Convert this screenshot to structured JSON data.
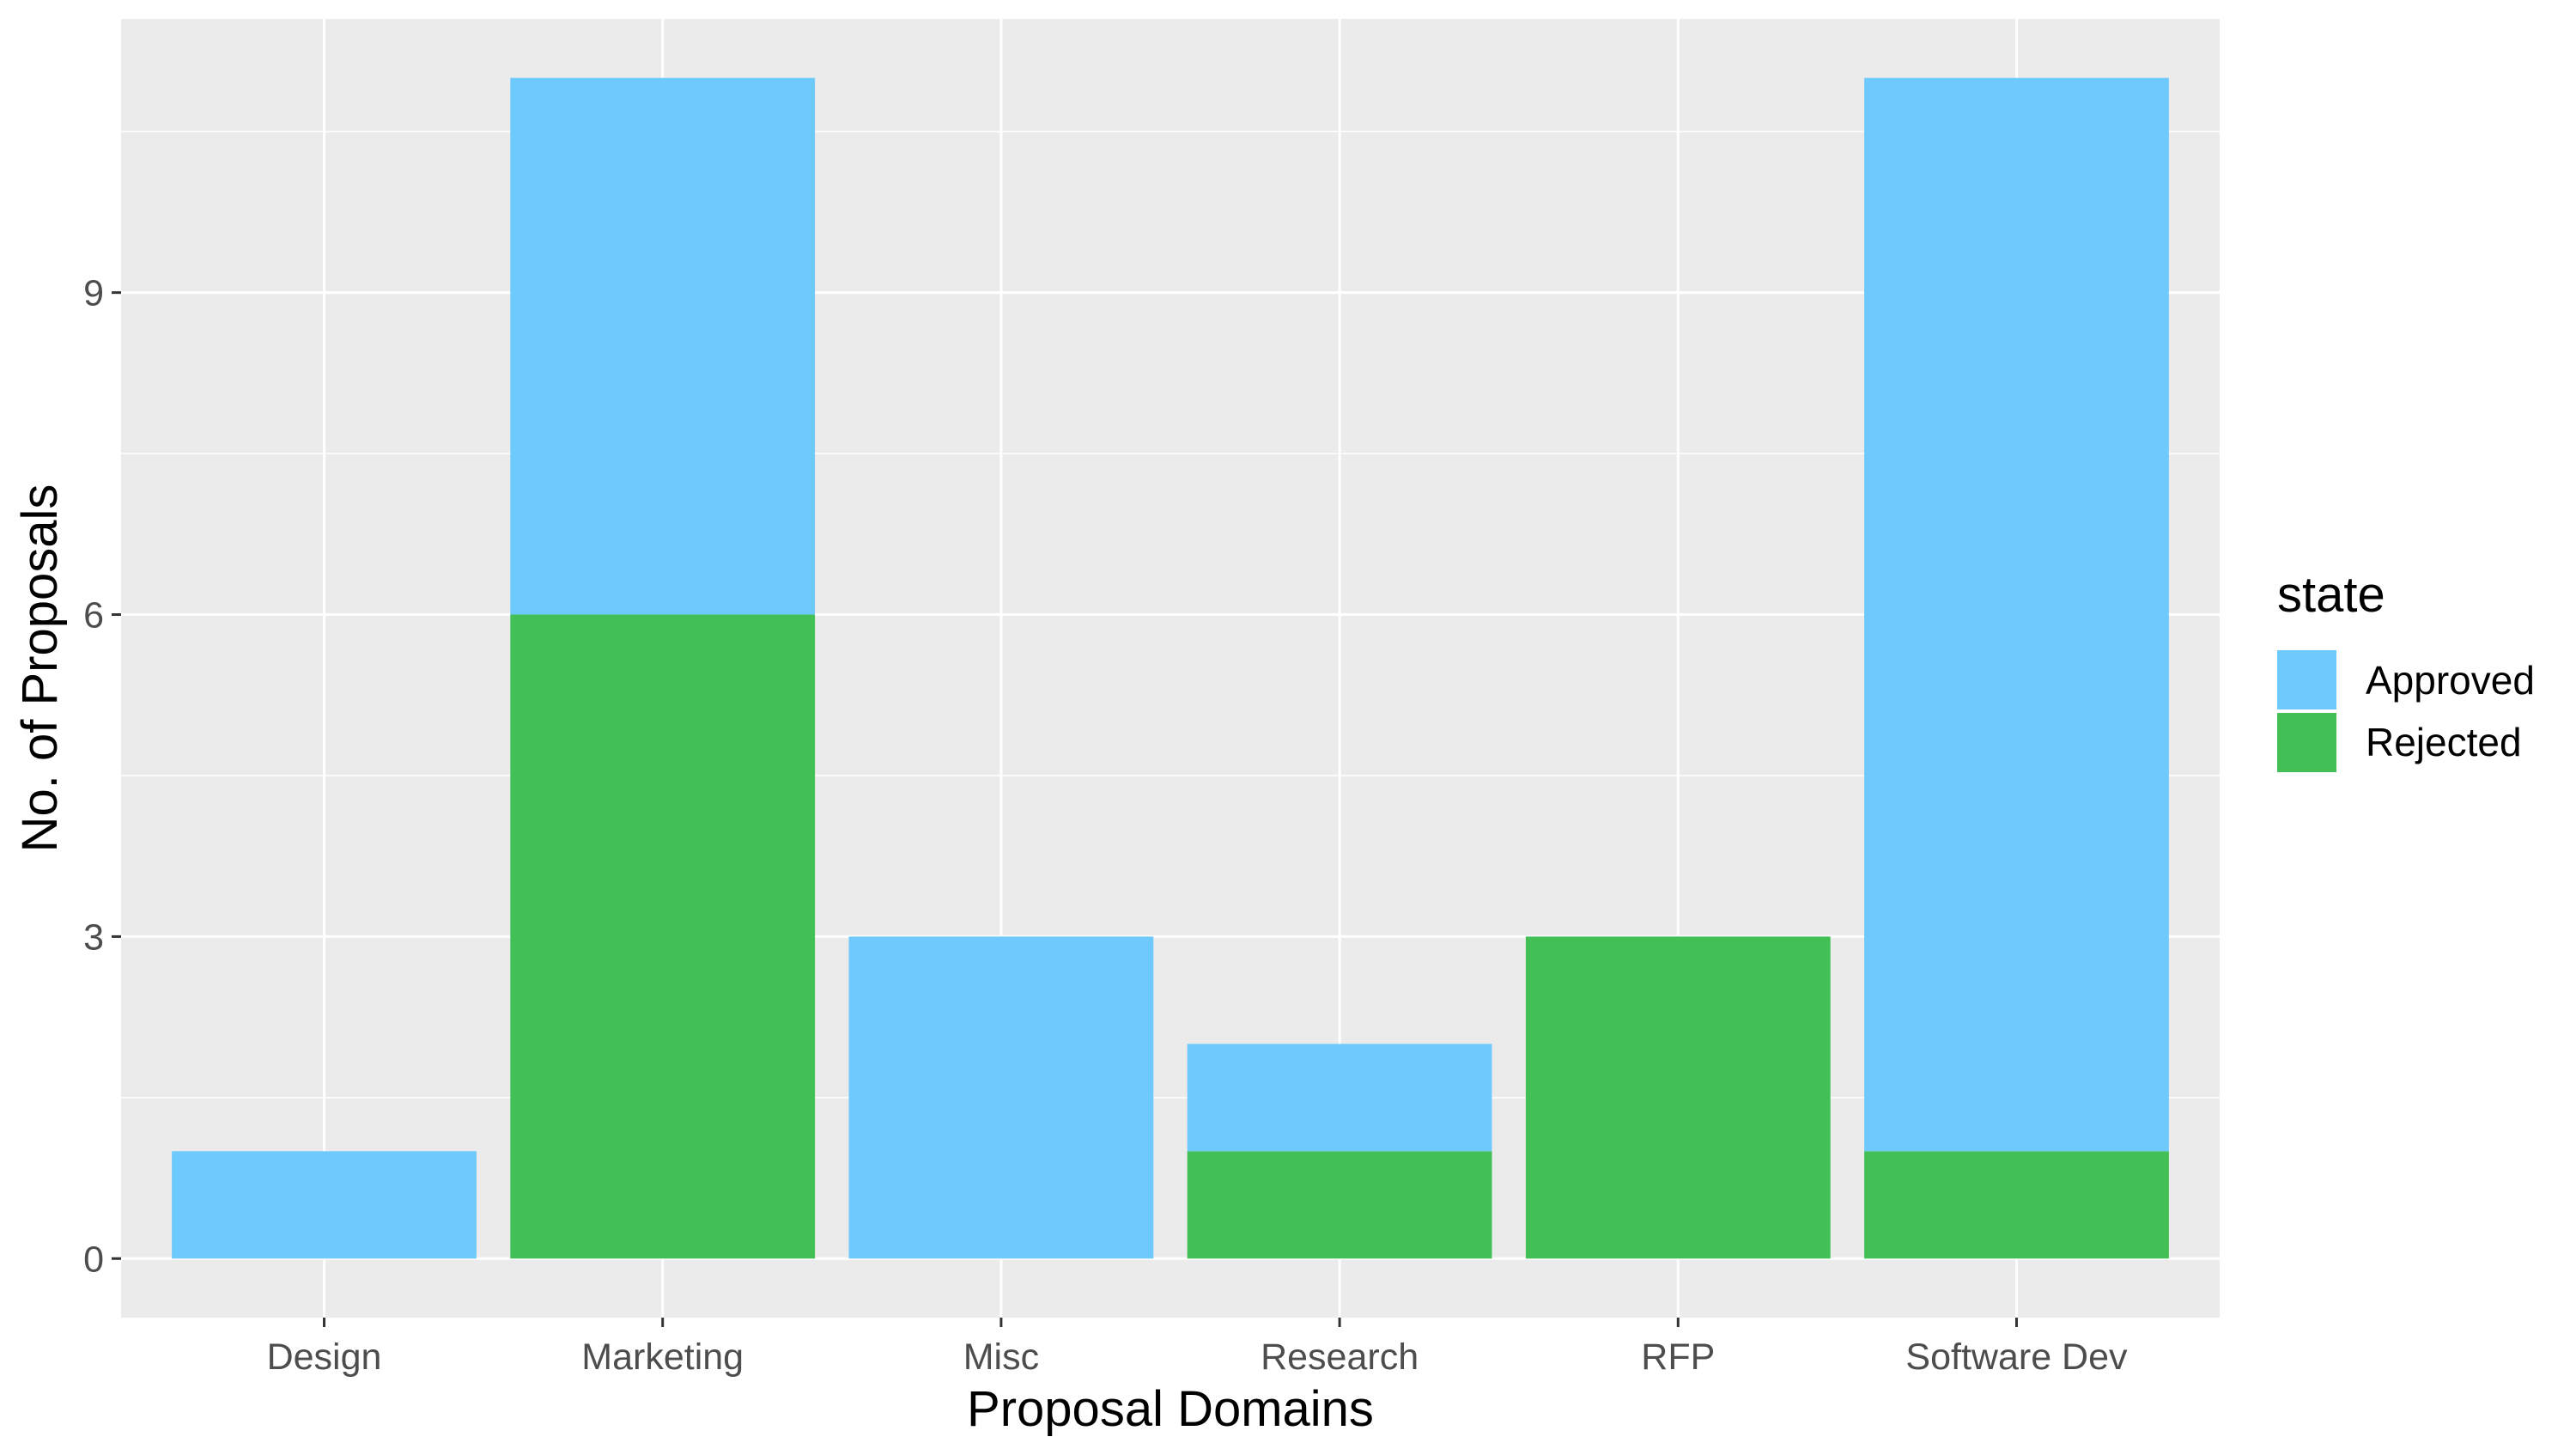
{
  "chart_data": {
    "type": "bar",
    "stacked": true,
    "categories": [
      "Design",
      "Marketing",
      "Misc",
      "Research",
      "RFP",
      "Software Dev"
    ],
    "series": [
      {
        "name": "Rejected",
        "values": [
          0,
          6,
          0,
          1,
          3,
          1
        ]
      },
      {
        "name": "Approved",
        "values": [
          1,
          5,
          3,
          1,
          0,
          10
        ]
      }
    ],
    "xlabel": "Proposal Domains",
    "ylabel": "No. of Proposals",
    "ylim": [
      -0.55,
      11.55
    ],
    "yticks": [
      "0",
      "3",
      "6",
      "9"
    ],
    "legend": {
      "title": "state",
      "position": "right",
      "entries": [
        "Approved",
        "Rejected"
      ]
    },
    "grid": true,
    "colors": {
      "Approved": "#6EC9FD",
      "Rejected": "#42BF55",
      "panel": "#EBEBEB",
      "grid": "#FFFFFF"
    }
  }
}
